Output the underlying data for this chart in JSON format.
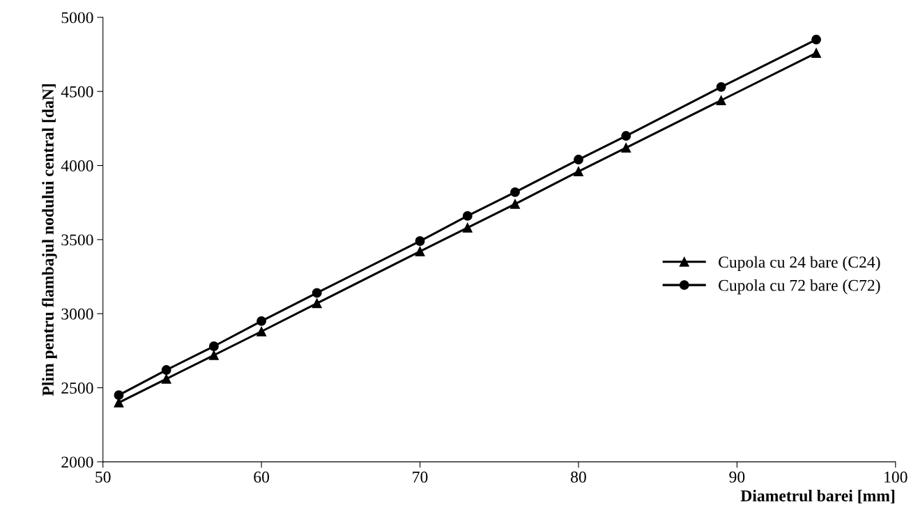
{
  "chart_data": {
    "type": "line",
    "xlabel": "Diametrul barei [mm]",
    "ylabel": "Plim pentru flambajul nodului central [daN]",
    "x": [
      51,
      54,
      57,
      60,
      63.5,
      70,
      73,
      76,
      80,
      83,
      89,
      95
    ],
    "series": [
      {
        "name": "Cupola cu 24 bare (C24)",
        "color": "#000000",
        "marker": "triangle",
        "values": [
          2400,
          2560,
          2720,
          2880,
          3070,
          3420,
          3580,
          3740,
          3960,
          4120,
          4440,
          4760
        ]
      },
      {
        "name": "Cupola cu 72 bare (C72)",
        "color": "#000000",
        "marker": "circle",
        "values": [
          2450,
          2620,
          2780,
          2950,
          3140,
          3490,
          3660,
          3820,
          4040,
          4200,
          4530,
          4850
        ]
      }
    ],
    "xlim": [
      50,
      100
    ],
    "xticks": [
      50,
      60,
      70,
      80,
      90,
      100
    ],
    "ylim": [
      2000,
      5000
    ],
    "yticks": [
      2000,
      2500,
      3000,
      3500,
      4000,
      4500,
      5000
    ],
    "grid": false,
    "legend": "right",
    "line_style": "solid"
  }
}
